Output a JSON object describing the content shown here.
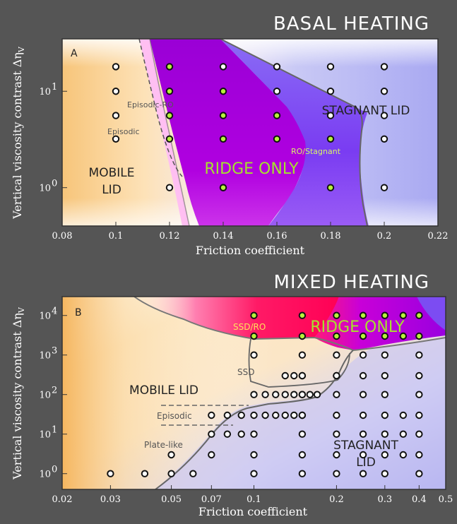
{
  "panels": [
    {
      "banner": "BASAL HEATING",
      "panel_label": "A",
      "xlabel": "Friction coefficient",
      "ylabel": "Vertical viscosity contrast Δη",
      "ylabel_sub": "V",
      "x_ticks": [
        "0.08",
        "0.1",
        "0.12",
        "0.14",
        "0.16",
        "0.18",
        "0.2",
        "0.22"
      ],
      "y_ticks": [
        "10",
        "10"
      ],
      "y_tick_exps": [
        "0",
        "1"
      ],
      "regions": {
        "mobile": [
          "MOBILE",
          "LID"
        ],
        "ridge": "RIDGE ONLY",
        "stagnant": "STAGNANT LID",
        "episodic_ro": "Episodic-RO",
        "episodic": "Episodic",
        "ro_stagnant": "RO/Stagnant"
      }
    },
    {
      "banner": "MIXED HEATING",
      "panel_label": "B",
      "xlabel": "Friction coefficient",
      "ylabel": "Vertical viscosity contrast Δη",
      "ylabel_sub": "V",
      "x_ticks": [
        "0.02",
        "0.03",
        "0.05",
        "0.07",
        "0.1",
        "0.2",
        "0.3",
        "0.4",
        "0.5"
      ],
      "y_ticks": [
        "10",
        "10",
        "10",
        "10",
        "10"
      ],
      "y_tick_exps": [
        "0",
        "1",
        "2",
        "3",
        "4"
      ],
      "regions": {
        "mobile": "MOBILE LID",
        "ridge": "RIDGE ONLY",
        "stagnant": [
          "STAGNANT",
          "LID"
        ],
        "ssd_ro": "SSD/RO",
        "ssd": "SSD",
        "episodic": "Episodic",
        "plate_like": "Plate-like"
      }
    }
  ],
  "chart_data": [
    {
      "type": "scatter",
      "title": "BASAL HEATING",
      "xlabel": "Friction coefficient",
      "ylabel": "Vertical viscosity contrast Δη_V",
      "xlim": [
        0.08,
        0.22
      ],
      "ylim": [
        0.4,
        35
      ],
      "yscale": "log",
      "series": [
        {
          "name": "MOBILE LID",
          "marker": "white-dot",
          "x": [
            0.1,
            0.1,
            0.1,
            0.1,
            0.12
          ],
          "y": [
            18,
            10,
            5.6,
            3.2,
            1
          ]
        },
        {
          "name": "RIDGE ONLY",
          "marker": "green-dot",
          "x": [
            0.12,
            0.12,
            0.12,
            0.12,
            0.14,
            0.14,
            0.14,
            0.14,
            0.14,
            0.16,
            0.16,
            0.18,
            0.18
          ],
          "y": [
            18,
            10,
            5.6,
            3.2,
            10,
            5.6,
            3.2,
            1,
            1,
            5.6,
            3.2,
            3.2,
            1
          ]
        },
        {
          "name": "STAGNANT LID",
          "marker": "white-dot",
          "x": [
            0.14,
            0.16,
            0.16,
            0.18,
            0.18,
            0.18,
            0.2,
            0.2,
            0.2,
            0.2,
            0.2
          ],
          "y": [
            18,
            18,
            10,
            18,
            10,
            5.6,
            18,
            10,
            5.6,
            3.2,
            1
          ]
        }
      ]
    },
    {
      "type": "scatter",
      "title": "MIXED HEATING",
      "xlabel": "Friction coefficient",
      "ylabel": "Vertical viscosity contrast Δη_V",
      "xlim": [
        0.02,
        0.5
      ],
      "ylim": [
        0.4,
        30000
      ],
      "xscale": "log",
      "yscale": "log",
      "series": [
        {
          "name": "RIDGE ONLY",
          "marker": "green-dot",
          "x": [
            0.1,
            0.1,
            0.15,
            0.15,
            0.2,
            0.2,
            0.25,
            0.25,
            0.3,
            0.3,
            0.35,
            0.35,
            0.4,
            0.4
          ],
          "y": [
            10000,
            3000,
            10000,
            3000,
            10000,
            3000,
            10000,
            3000,
            10000,
            3000,
            10000,
            3000,
            10000,
            3000
          ]
        },
        {
          "name": "MOBILE LID",
          "marker": "white-dot",
          "x": [
            0.03,
            0.04,
            0.05,
            0.06,
            0.05,
            0.07,
            0.07,
            0.07,
            0.08,
            0.09,
            0.1,
            0.11,
            0.12,
            0.13,
            0.14,
            0.15,
            0.1,
            0.11,
            0.12,
            0.13,
            0.14,
            0.15,
            0.16,
            0.17,
            0.13,
            0.14,
            0.15,
            0.1,
            0.15,
            0.2,
            0.2,
            0.15,
            0.15
          ],
          "y": [
            1,
            1,
            1,
            1,
            3,
            3,
            10,
            30,
            30,
            30,
            30,
            30,
            30,
            30,
            30,
            30,
            100,
            100,
            100,
            100,
            100,
            100,
            100,
            100,
            300,
            300,
            300,
            1000,
            1000,
            1000,
            300,
            100,
            300
          ]
        },
        {
          "name": "STAGNANT LID",
          "marker": "white-dot",
          "x": [
            0.08,
            0.09,
            0.1,
            0.1,
            0.1,
            0.15,
            0.15,
            0.15,
            0.15,
            0.2,
            0.2,
            0.2,
            0.2,
            0.2,
            0.2,
            0.25,
            0.25,
            0.25,
            0.25,
            0.25,
            0.25,
            0.25,
            0.3,
            0.3,
            0.3,
            0.3,
            0.3,
            0.3,
            0.3,
            0.35,
            0.35,
            0.35,
            0.4,
            0.4,
            0.4,
            0.4,
            0.4,
            0.4,
            0.4
          ],
          "y": [
            10,
            10,
            10,
            3,
            1,
            10,
            3,
            1,
            30,
            30,
            10,
            3,
            1,
            100,
            300,
            1000,
            300,
            100,
            30,
            10,
            3,
            1,
            1000,
            300,
            100,
            30,
            10,
            3,
            1,
            30,
            10,
            3,
            1000,
            300,
            100,
            30,
            10,
            3,
            1
          ]
        }
      ]
    }
  ]
}
